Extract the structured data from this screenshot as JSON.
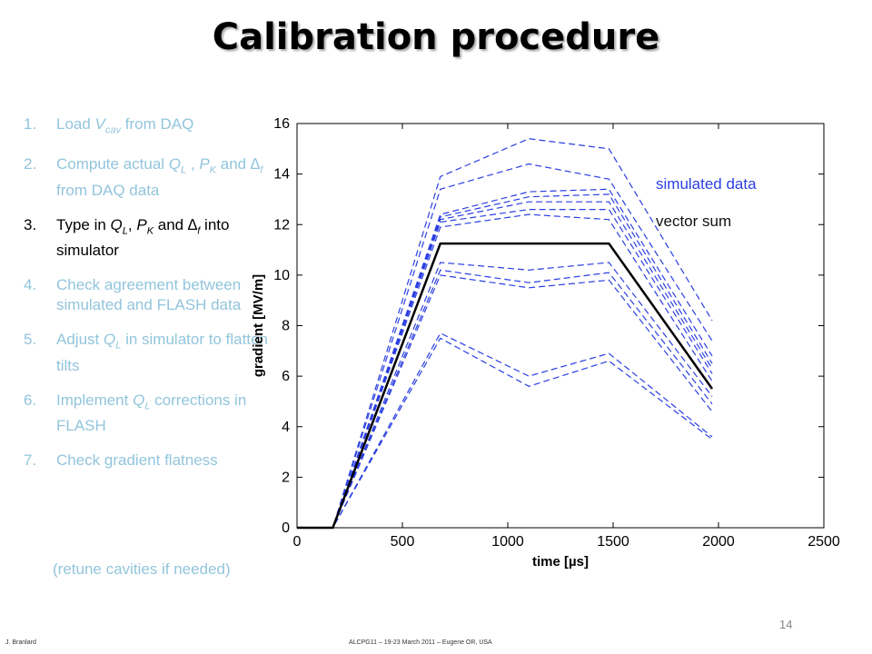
{
  "slide": {
    "title": "Calibration procedure",
    "page_number": "14",
    "footer_left": "J. Branlard",
    "footer_center": "ALCPG11 – 19-23 March 2011 – Eugene OR, USA"
  },
  "steps": [
    {
      "num": "1.",
      "text": "Load V_cav from DAQ",
      "active": false
    },
    {
      "num": "2.",
      "text": "Compute actual Q_L , P_K and ∆_f from DAQ data",
      "active": false
    },
    {
      "num": "3.",
      "text": "Type in Q_L, P_K and ∆_f into simulator",
      "active": true
    },
    {
      "num": "4.",
      "text": "Check agreement between simulated and FLASH data",
      "active": false
    },
    {
      "num": "5.",
      "text": "Adjust Q_L in simulator to flatten tilts",
      "active": false
    },
    {
      "num": "6.",
      "text": "Implement Q_L corrections in FLASH",
      "active": false
    },
    {
      "num": "7.",
      "text": "Check gradient flatness",
      "active": false
    }
  ],
  "step7_continuation": "(retune cavities if needed)",
  "colors": {
    "inactive_text": "#92c5dc",
    "simulated": "#2b3fe0",
    "vector_sum": "#000000"
  },
  "chart_data": {
    "type": "line",
    "xlabel": "time [µs]",
    "ylabel": "gradient [MV/m]",
    "xlim": [
      0,
      2500
    ],
    "ylim": [
      0,
      16
    ],
    "xticks": [
      0,
      500,
      1000,
      1500,
      2000,
      2500
    ],
    "yticks": [
      0,
      2,
      4,
      6,
      8,
      10,
      12,
      14,
      16
    ],
    "grid": false,
    "legend": [
      {
        "label": "simulated data",
        "color": "#2b3fe0"
      },
      {
        "label": "vector sum",
        "color": "#000000"
      }
    ],
    "x": [
      0,
      170,
      680,
      1100,
      1480,
      1970
    ],
    "series": [
      {
        "name": "simulated data",
        "style": "dashed",
        "values": [
          0,
          0,
          13.9,
          15.4,
          15.0,
          8.2
        ]
      },
      {
        "name": "simulated data",
        "style": "dashed",
        "values": [
          0,
          0,
          13.4,
          14.4,
          13.8,
          7.4
        ]
      },
      {
        "name": "simulated data",
        "style": "dashed",
        "values": [
          0,
          0,
          12.4,
          13.3,
          13.4,
          6.8
        ]
      },
      {
        "name": "simulated data",
        "style": "dashed",
        "values": [
          0,
          0,
          12.3,
          13.1,
          13.2,
          6.5
        ]
      },
      {
        "name": "simulated data",
        "style": "dashed",
        "values": [
          0,
          0,
          12.2,
          12.9,
          12.9,
          6.3
        ]
      },
      {
        "name": "simulated data",
        "style": "dashed",
        "values": [
          0,
          0,
          12.1,
          12.6,
          12.6,
          6.1
        ]
      },
      {
        "name": "simulated data",
        "style": "dashed",
        "values": [
          0,
          0,
          11.9,
          12.4,
          12.2,
          5.8
        ]
      },
      {
        "name": "simulated data",
        "style": "dashed",
        "values": [
          0,
          0,
          10.5,
          10.2,
          10.5,
          5.2
        ]
      },
      {
        "name": "simulated data",
        "style": "dashed",
        "values": [
          0,
          0,
          10.2,
          9.7,
          10.1,
          4.9
        ]
      },
      {
        "name": "simulated data",
        "style": "dashed",
        "values": [
          0,
          0,
          10.0,
          9.5,
          9.8,
          4.6
        ]
      },
      {
        "name": "simulated data",
        "style": "dashed",
        "values": [
          0,
          0,
          7.7,
          6.0,
          6.9,
          3.6
        ]
      },
      {
        "name": "simulated data",
        "style": "dashed",
        "values": [
          0,
          0,
          7.5,
          5.6,
          6.6,
          3.5
        ]
      },
      {
        "name": "vector sum",
        "style": "solid",
        "values": [
          0,
          0,
          11.25,
          11.25,
          11.25,
          5.5
        ]
      }
    ]
  }
}
